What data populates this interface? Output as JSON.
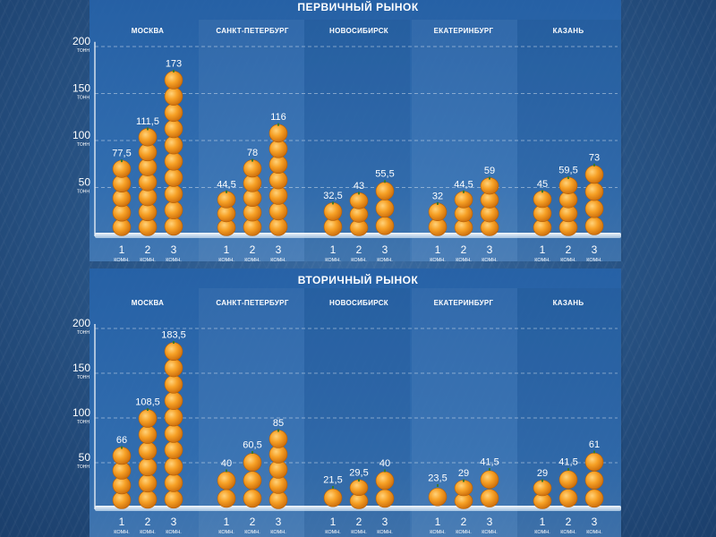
{
  "chart_data": [
    {
      "type": "bar",
      "title": "ПЕРВИЧНЫЙ РЫНОК",
      "y_unit": "ТОНН",
      "ylim": [
        0,
        200
      ],
      "yticks": [
        50,
        100,
        150,
        200
      ],
      "category_groups": [
        "МОСКВА",
        "САНКТ-ПЕТЕРБУРГ",
        "НОВОСИБИРСК",
        "ЕКАТЕРИНБУРГ",
        "КАЗАНЬ"
      ],
      "subcategories": [
        "1",
        "2",
        "3"
      ],
      "subcategory_unit": "КОМН.",
      "value_labels": [
        [
          "77,5",
          "111,5",
          "173"
        ],
        [
          "44,5",
          "78",
          "116"
        ],
        [
          "32,5",
          "43",
          "55,5"
        ],
        [
          "32",
          "44,5",
          "59"
        ],
        [
          "45",
          "59,5",
          "73"
        ]
      ],
      "values": [
        [
          77.5,
          111.5,
          173
        ],
        [
          44.5,
          78,
          116
        ],
        [
          32.5,
          43,
          55.5
        ],
        [
          32,
          44.5,
          59
        ],
        [
          45,
          59.5,
          73
        ]
      ],
      "grid": true
    },
    {
      "type": "bar",
      "title": "ВТОРИЧНЫЙ РЫНОК",
      "y_unit": "ТОНН",
      "ylim": [
        0,
        200
      ],
      "yticks": [
        50,
        100,
        150,
        200
      ],
      "category_groups": [
        "МОСКВА",
        "САНКТ-ПЕТЕРБУРГ",
        "НОВОСИБИРСК",
        "ЕКАТЕРИНБУРГ",
        "КАЗАНЬ"
      ],
      "subcategories": [
        "1",
        "2",
        "3"
      ],
      "subcategory_unit": "КОМН.",
      "value_labels": [
        [
          "66",
          "108,5",
          "183,5"
        ],
        [
          "40",
          "60,5",
          "85"
        ],
        [
          "21,5",
          "29,5",
          "40"
        ],
        [
          "23,5",
          "29",
          "41,5"
        ],
        [
          "29",
          "41,5",
          "61"
        ]
      ],
      "values": [
        [
          66,
          108.5,
          183.5
        ],
        [
          40,
          60.5,
          85
        ],
        [
          21.5,
          29.5,
          40
        ],
        [
          23.5,
          29,
          41.5
        ],
        [
          29,
          41.5,
          61
        ]
      ],
      "grid": true
    }
  ],
  "colors": {
    "orange": "#f39a1c",
    "orange_light": "#ffc35a",
    "orange_dark": "#c96c0c",
    "stem": "#3b7a2c",
    "grid": "#ffffff",
    "text": "#ffffff"
  }
}
